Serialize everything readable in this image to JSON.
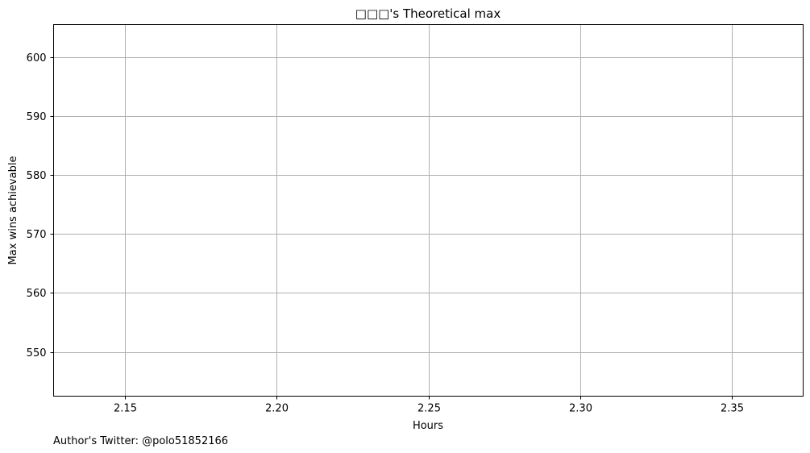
{
  "chart_data": {
    "type": "line",
    "title": "□□□'s Theoretical max",
    "xlabel": "Hours",
    "ylabel": "Max wins achievable",
    "xlim": [
      2.1266,
      2.3734
    ],
    "ylim": [
      542.5,
      605.5
    ],
    "x_ticks": [
      2.15,
      2.2,
      2.25,
      2.3,
      2.35
    ],
    "x_tick_labels": [
      "2.15",
      "2.20",
      "2.25",
      "2.30",
      "2.35"
    ],
    "y_ticks": [
      550,
      560,
      570,
      580,
      590,
      600
    ],
    "y_tick_labels": [
      "550",
      "560",
      "570",
      "580",
      "590",
      "600"
    ],
    "grid": true,
    "series": []
  },
  "footer": {
    "author": "Author's Twitter: @polo51852166"
  },
  "colors": {
    "grid": "#b0b0b0",
    "axes": "#000000",
    "background": "#ffffff"
  }
}
